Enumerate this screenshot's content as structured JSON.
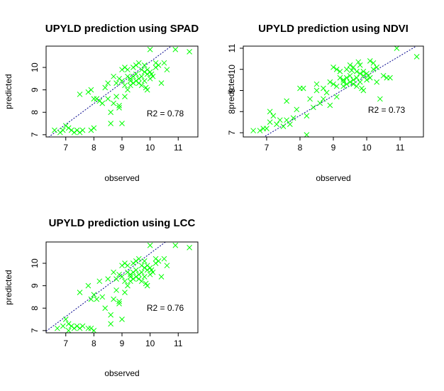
{
  "chart_data": [
    {
      "type": "scatter",
      "title": "UPYLD prediction using SPAD",
      "xlabel": "observed",
      "ylabel": "predicted",
      "xlim": [
        6.3,
        11.7
      ],
      "ylim": [
        6.9,
        10.95
      ],
      "xticks": [
        7,
        8,
        9,
        10,
        11
      ],
      "yticks": [
        7,
        8,
        9,
        10
      ],
      "annotation": "R2 = 0.78",
      "marker_color": "#00FF00",
      "line_color": "#00008B",
      "points": [
        [
          6.6,
          7.2
        ],
        [
          6.8,
          7.1
        ],
        [
          6.9,
          7.2
        ],
        [
          7.0,
          7.4
        ],
        [
          7.1,
          7.3
        ],
        [
          7.2,
          7.2
        ],
        [
          7.3,
          7.1
        ],
        [
          7.4,
          7.2
        ],
        [
          7.5,
          7.1
        ],
        [
          7.6,
          7.2
        ],
        [
          7.9,
          7.2
        ],
        [
          8.0,
          7.3
        ],
        [
          7.5,
          8.8
        ],
        [
          7.8,
          8.9
        ],
        [
          7.9,
          9.0
        ],
        [
          8.1,
          8.6
        ],
        [
          8.2,
          8.5
        ],
        [
          8.3,
          8.4
        ],
        [
          8.4,
          9.1
        ],
        [
          8.5,
          8.6
        ],
        [
          8.6,
          8.0
        ],
        [
          8.6,
          7.5
        ],
        [
          8.7,
          8.4
        ],
        [
          8.8,
          8.7
        ],
        [
          8.9,
          8.2
        ],
        [
          9.0,
          7.5
        ],
        [
          8.7,
          9.6
        ],
        [
          8.8,
          9.3
        ],
        [
          8.9,
          9.5
        ],
        [
          9.0,
          9.9
        ],
        [
          9.1,
          10.0
        ],
        [
          9.1,
          8.7
        ],
        [
          9.2,
          9.0
        ],
        [
          9.2,
          9.6
        ],
        [
          9.3,
          9.2
        ],
        [
          9.3,
          9.5
        ],
        [
          9.4,
          9.3
        ],
        [
          9.4,
          9.6
        ],
        [
          9.5,
          9.4
        ],
        [
          9.5,
          9.7
        ],
        [
          9.6,
          9.5
        ],
        [
          9.6,
          10.2
        ],
        [
          9.7,
          9.6
        ],
        [
          9.7,
          9.2
        ],
        [
          9.8,
          9.8
        ],
        [
          9.8,
          9.4
        ],
        [
          9.9,
          9.7
        ],
        [
          9.9,
          9.0
        ],
        [
          10.0,
          9.8
        ],
        [
          10.0,
          9.5
        ],
        [
          9.2,
          9.9
        ],
        [
          9.5,
          10.1
        ],
        [
          9.8,
          10.1
        ],
        [
          10.1,
          9.6
        ],
        [
          10.2,
          10.2
        ],
        [
          10.3,
          10.1
        ],
        [
          10.4,
          9.3
        ],
        [
          10.5,
          10.2
        ],
        [
          10.6,
          9.9
        ],
        [
          10.0,
          10.8
        ],
        [
          10.9,
          10.8
        ],
        [
          11.4,
          10.7
        ],
        [
          9.0,
          9.4
        ],
        [
          9.6,
          9.3
        ],
        [
          9.9,
          9.9
        ],
        [
          8.5,
          9.3
        ],
        [
          8.9,
          8.3
        ],
        [
          9.3,
          9.4
        ],
        [
          9.7,
          9.9
        ],
        [
          10.2,
          10.0
        ],
        [
          9.1,
          9.2
        ],
        [
          8.0,
          8.6
        ],
        [
          9.4,
          10.0
        ],
        [
          9.85,
          9.1
        ],
        [
          10.05,
          9.7
        ]
      ],
      "line": [
        [
          6.3,
          6.81
        ],
        [
          11.7,
          11.83
        ]
      ]
    },
    {
      "type": "scatter",
      "title": "UPYLD prediction using NDVI",
      "xlabel": "observed",
      "ylabel": "predicted",
      "xlim": [
        6.3,
        11.7
      ],
      "ylim": [
        6.8,
        11.1
      ],
      "xticks": [
        7,
        8,
        9,
        10,
        11
      ],
      "yticks": [
        7,
        8,
        9,
        10,
        11
      ],
      "annotation": "R2 = 0.73",
      "marker_color": "#00FF00",
      "line_color": "#00008B",
      "points": [
        [
          6.6,
          7.1
        ],
        [
          6.8,
          7.1
        ],
        [
          6.9,
          7.2
        ],
        [
          7.0,
          7.2
        ],
        [
          7.1,
          7.5
        ],
        [
          7.1,
          8.0
        ],
        [
          7.2,
          7.8
        ],
        [
          7.3,
          7.4
        ],
        [
          7.4,
          7.6
        ],
        [
          7.5,
          7.3
        ],
        [
          7.6,
          7.6
        ],
        [
          7.7,
          7.4
        ],
        [
          7.8,
          7.7
        ],
        [
          7.6,
          8.5
        ],
        [
          7.9,
          8.1
        ],
        [
          8.0,
          9.1
        ],
        [
          8.1,
          9.1
        ],
        [
          8.2,
          7.8
        ],
        [
          8.2,
          6.9
        ],
        [
          8.3,
          8.6
        ],
        [
          8.4,
          8.2
        ],
        [
          8.5,
          9.0
        ],
        [
          8.6,
          8.4
        ],
        [
          8.7,
          8.6
        ],
        [
          8.7,
          9.1
        ],
        [
          8.8,
          8.9
        ],
        [
          8.9,
          9.4
        ],
        [
          9.0,
          9.3
        ],
        [
          9.0,
          10.1
        ],
        [
          9.1,
          10.0
        ],
        [
          9.1,
          8.7
        ],
        [
          9.2,
          9.6
        ],
        [
          9.3,
          9.2
        ],
        [
          9.3,
          9.5
        ],
        [
          9.4,
          9.3
        ],
        [
          9.4,
          9.6
        ],
        [
          9.5,
          9.4
        ],
        [
          9.5,
          9.7
        ],
        [
          9.6,
          9.5
        ],
        [
          9.6,
          10.1
        ],
        [
          9.7,
          9.6
        ],
        [
          9.7,
          9.2
        ],
        [
          9.8,
          9.8
        ],
        [
          9.8,
          9.4
        ],
        [
          9.9,
          9.7
        ],
        [
          9.9,
          9.0
        ],
        [
          10.0,
          9.8
        ],
        [
          10.0,
          9.5
        ],
        [
          9.2,
          9.9
        ],
        [
          9.5,
          10.2
        ],
        [
          9.8,
          10.2
        ],
        [
          10.1,
          9.6
        ],
        [
          10.2,
          10.3
        ],
        [
          10.3,
          10.1
        ],
        [
          10.4,
          8.6
        ],
        [
          10.5,
          9.7
        ],
        [
          10.6,
          9.6
        ],
        [
          10.1,
          10.4
        ],
        [
          10.9,
          11.0
        ],
        [
          11.5,
          10.6
        ],
        [
          10.7,
          9.6
        ],
        [
          9.6,
          9.3
        ],
        [
          9.9,
          9.9
        ],
        [
          8.5,
          9.3
        ],
        [
          8.9,
          8.3
        ],
        [
          9.3,
          9.4
        ],
        [
          9.7,
          9.9
        ],
        [
          10.2,
          10.0
        ],
        [
          9.1,
          9.2
        ],
        [
          9.4,
          10.0
        ],
        [
          9.85,
          9.1
        ],
        [
          10.05,
          9.7
        ],
        [
          10.3,
          9.4
        ],
        [
          9.55,
          9.95
        ],
        [
          9.75,
          10.35
        ]
      ],
      "line": [
        [
          6.3,
          6.22
        ],
        [
          11.7,
          11.3
        ]
      ]
    },
    {
      "type": "scatter",
      "title": "UPYLD prediction using LCC",
      "xlabel": "observed",
      "ylabel": "predicted",
      "xlim": [
        6.3,
        11.7
      ],
      "ylim": [
        6.9,
        10.95
      ],
      "xticks": [
        7,
        8,
        9,
        10,
        11
      ],
      "yticks": [
        7,
        8,
        9,
        10
      ],
      "annotation": "R2 = 0.76",
      "marker_color": "#00FF00",
      "line_color": "#00008B",
      "points": [
        [
          6.7,
          7.1
        ],
        [
          6.9,
          7.2
        ],
        [
          7.0,
          7.5
        ],
        [
          7.1,
          7.3
        ],
        [
          7.1,
          7.0
        ],
        [
          7.2,
          7.2
        ],
        [
          7.3,
          7.1
        ],
        [
          7.4,
          7.2
        ],
        [
          7.5,
          7.1
        ],
        [
          7.6,
          7.2
        ],
        [
          7.9,
          7.1
        ],
        [
          8.0,
          7.0
        ],
        [
          7.8,
          7.1
        ],
        [
          7.5,
          8.7
        ],
        [
          7.8,
          9.0
        ],
        [
          7.9,
          8.4
        ],
        [
          8.1,
          8.4
        ],
        [
          8.2,
          9.2
        ],
        [
          8.3,
          8.5
        ],
        [
          8.4,
          8.0
        ],
        [
          8.6,
          7.7
        ],
        [
          8.6,
          7.3
        ],
        [
          8.7,
          8.4
        ],
        [
          8.8,
          8.8
        ],
        [
          8.9,
          8.2
        ],
        [
          9.0,
          7.5
        ],
        [
          8.7,
          9.6
        ],
        [
          8.8,
          9.3
        ],
        [
          8.9,
          9.5
        ],
        [
          9.0,
          9.9
        ],
        [
          9.1,
          10.0
        ],
        [
          9.1,
          8.7
        ],
        [
          9.2,
          9.0
        ],
        [
          9.2,
          9.6
        ],
        [
          9.3,
          9.2
        ],
        [
          9.3,
          9.5
        ],
        [
          9.4,
          9.3
        ],
        [
          9.4,
          9.6
        ],
        [
          9.5,
          9.4
        ],
        [
          9.5,
          9.7
        ],
        [
          9.6,
          9.5
        ],
        [
          9.6,
          10.2
        ],
        [
          9.7,
          9.6
        ],
        [
          9.7,
          9.2
        ],
        [
          9.8,
          9.8
        ],
        [
          9.8,
          9.4
        ],
        [
          9.9,
          9.7
        ],
        [
          9.9,
          9.0
        ],
        [
          10.0,
          9.8
        ],
        [
          10.0,
          9.5
        ],
        [
          9.2,
          9.9
        ],
        [
          9.5,
          10.1
        ],
        [
          9.8,
          10.1
        ],
        [
          10.1,
          9.6
        ],
        [
          10.2,
          10.2
        ],
        [
          10.3,
          10.1
        ],
        [
          10.4,
          9.4
        ],
        [
          10.5,
          10.2
        ],
        [
          10.6,
          9.9
        ],
        [
          10.0,
          10.8
        ],
        [
          10.9,
          10.8
        ],
        [
          11.4,
          10.7
        ],
        [
          9.0,
          9.4
        ],
        [
          9.6,
          9.3
        ],
        [
          9.9,
          9.9
        ],
        [
          8.5,
          9.3
        ],
        [
          8.9,
          8.3
        ],
        [
          9.3,
          9.4
        ],
        [
          9.7,
          9.9
        ],
        [
          10.2,
          10.0
        ],
        [
          9.1,
          9.2
        ],
        [
          8.0,
          8.6
        ],
        [
          9.4,
          10.0
        ],
        [
          9.85,
          9.1
        ],
        [
          10.05,
          9.7
        ]
      ],
      "line": [
        [
          6.3,
          6.97
        ],
        [
          11.7,
          12.03
        ]
      ]
    }
  ]
}
